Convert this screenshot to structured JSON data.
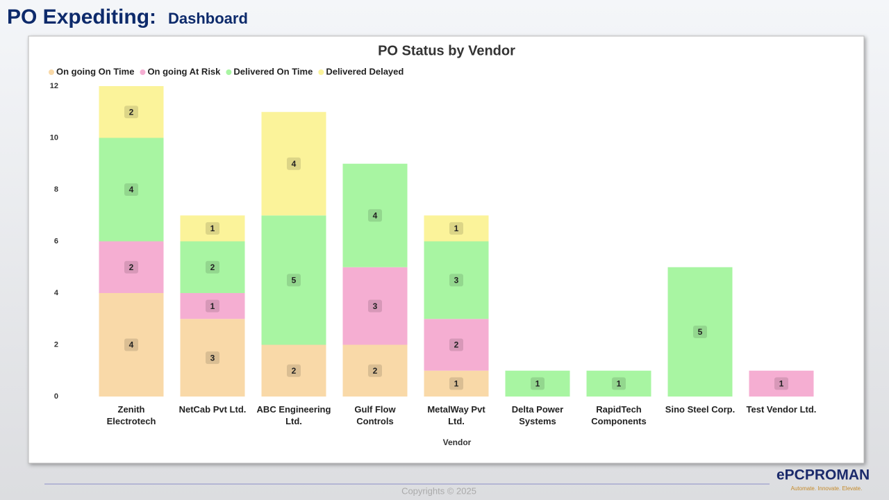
{
  "header": {
    "title": "PO Expediting:",
    "subtitle": "Dashboard"
  },
  "chart_data": {
    "type": "stacked_bar",
    "title": "PO Status by Vendor",
    "x_label": "Vendor",
    "categories": [
      "Zenith Electrotech",
      "NetCab Pvt Ltd.",
      "ABC Engineering Ltd.",
      "Gulf Flow Controls",
      "MetalWay Pvt Ltd.",
      "Delta Power Systems",
      "RapidTech Components",
      "Sino Steel Corp.",
      "Test Vendor Ltd."
    ],
    "series": [
      {
        "name": "On going On Time",
        "color": "#f9d9a8",
        "values": [
          4,
          3,
          2,
          2,
          1,
          null,
          null,
          null,
          null
        ]
      },
      {
        "name": "On going At Risk",
        "color": "#f5aed2",
        "values": [
          2,
          1,
          null,
          3,
          2,
          null,
          null,
          null,
          1
        ]
      },
      {
        "name": "Delivered On Time",
        "color": "#a8f5a2",
        "values": [
          4,
          2,
          5,
          4,
          3,
          1,
          1,
          5,
          null
        ]
      },
      {
        "name": "Delivered Delayed",
        "color": "#fbf39a",
        "values": [
          2,
          1,
          4,
          null,
          1,
          null,
          null,
          null,
          null
        ]
      }
    ],
    "ylim": [
      0,
      12
    ],
    "yticks": [
      0,
      2,
      4,
      6,
      8,
      10,
      12
    ],
    "grid": false,
    "legend": "top-left"
  },
  "footer": {
    "copyright": "Copyrights © 2025",
    "logo": "ePCPROMAN",
    "tagline": "Automate. Innovate. Elevate."
  }
}
